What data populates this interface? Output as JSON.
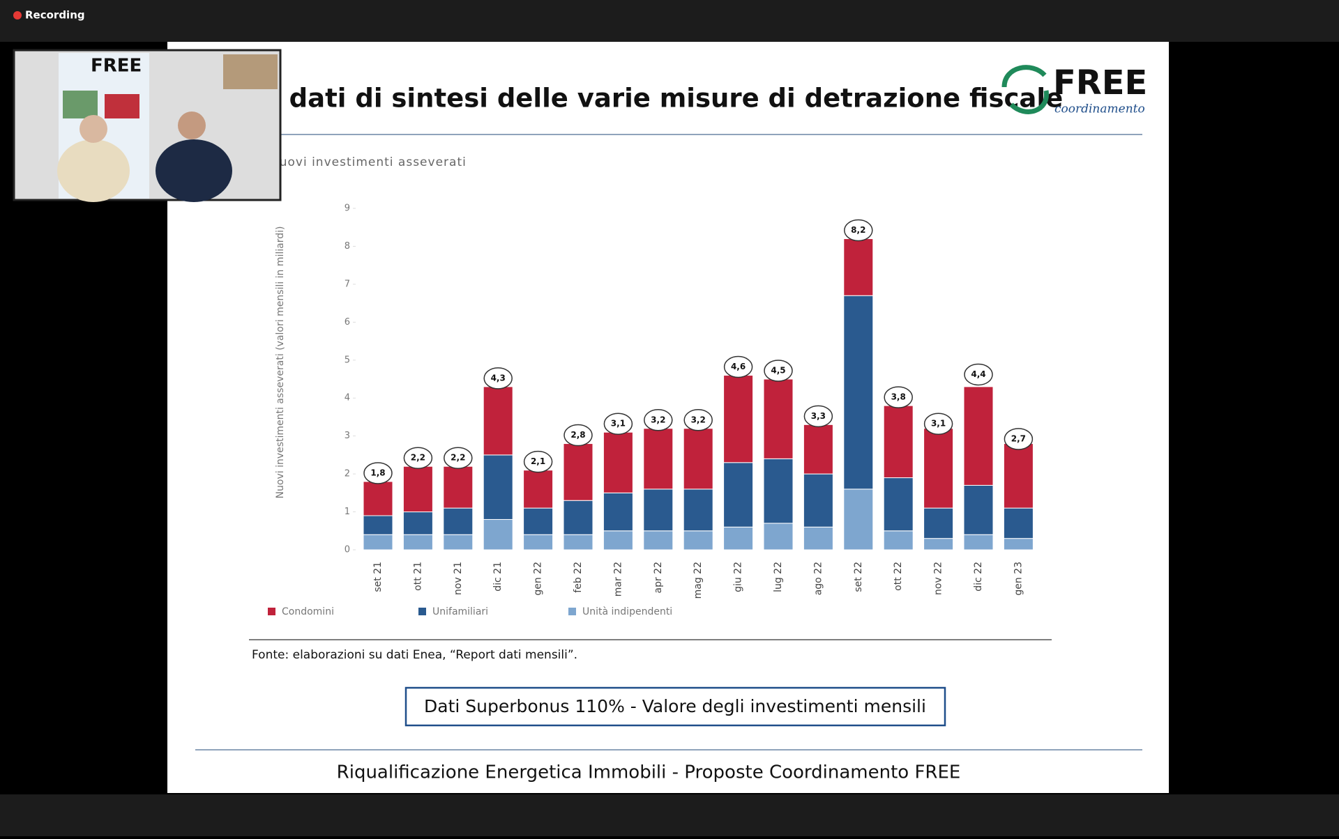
{
  "recording": "Recording",
  "slide": {
    "title": "I dati di sintesi delle varie misure di detrazione fiscale",
    "logo_text": "FREE",
    "logo_sub": "coordinamento",
    "source": "Fonte: elaborazioni su dati Enea, “Report dati mensili”.",
    "box_text": "Dati Superbonus 110% -  Valore degli investimenti mensili",
    "footer": "Riqualificazione Energetica Immobili - Proposte Coordinamento FREE"
  },
  "chart_data": {
    "type": "stacked-bar",
    "title": "Nuovi investimenti asseverati",
    "y_label": "Nuovi investimenti asseverati (valori mensili in miliardi)",
    "categories": [
      "set 21",
      "ott 21",
      "nov 21",
      "dic 21",
      "gen 22",
      "feb 22",
      "mar 22",
      "apr 22",
      "mag 22",
      "giu 22",
      "lug 22",
      "ago 22",
      "set 22",
      "ott 22",
      "nov 22",
      "dic 22",
      "gen 23"
    ],
    "series": [
      {
        "name": "Condomini",
        "color": "#c0223b",
        "values": [
          0.9,
          1.2,
          1.1,
          1.8,
          1.0,
          1.5,
          1.6,
          1.6,
          1.6,
          2.3,
          2.1,
          1.3,
          1.5,
          1.9,
          2.1,
          2.6,
          1.7
        ]
      },
      {
        "name": "Unifamiliari",
        "color": "#2a5a8f",
        "values": [
          0.5,
          0.6,
          0.7,
          1.7,
          0.7,
          0.9,
          1.0,
          1.1,
          1.1,
          1.7,
          1.7,
          1.4,
          5.1,
          1.4,
          0.8,
          1.3,
          0.8
        ]
      },
      {
        "name": "Unità indipendenti",
        "color": "#7ea6cf",
        "values": [
          0.4,
          0.4,
          0.4,
          0.8,
          0.4,
          0.4,
          0.5,
          0.5,
          0.5,
          0.6,
          0.7,
          0.6,
          1.6,
          0.5,
          0.3,
          0.4,
          0.3
        ]
      }
    ],
    "totals": [
      1.8,
      2.2,
      2.2,
      4.3,
      2.1,
      2.8,
      3.1,
      3.2,
      3.2,
      4.6,
      4.5,
      3.3,
      8.2,
      3.8,
      3.1,
      4.4,
      2.7
    ],
    "total_labels": [
      "1,8",
      "2,2",
      "2,2",
      "4,3",
      "2,1",
      "2,8",
      "3,1",
      "3,2",
      "3,2",
      "4,6",
      "4,5",
      "3,3",
      "8,2",
      "3,8",
      "3,1",
      "4,4",
      "2,7"
    ],
    "ylim": [
      0,
      9
    ],
    "yticks": [
      0,
      1,
      2,
      3,
      4,
      5,
      6,
      7,
      8,
      9
    ]
  }
}
